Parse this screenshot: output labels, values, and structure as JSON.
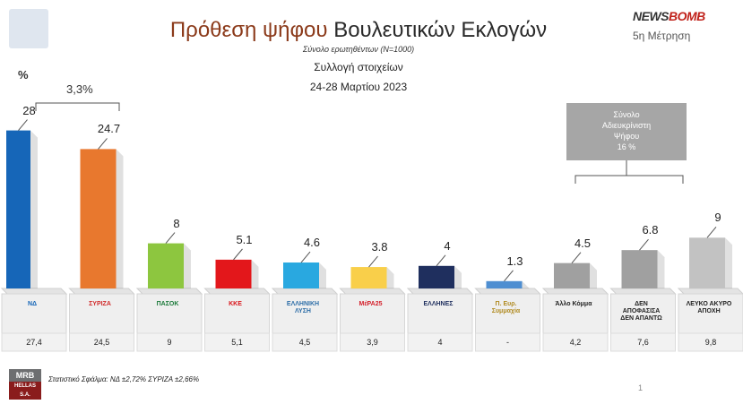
{
  "header": {
    "title_part1": "Πρόθεση ψήφου",
    "title_part2": "Βουλευτικών Εκλογών",
    "sample": "Σύνολο ερωτηθέντων (Ν=1000)",
    "collection": "Συλλογή στοιχείων",
    "dates": "24-28 Μαρτίου 2023",
    "brand_news": "NEWS",
    "brand_bomb": "BOMB",
    "wave": "5η Μέτρηση"
  },
  "annotations": {
    "unit": "%",
    "gap": "3,3%",
    "undecided_box": [
      "Σύνολο",
      "Αδιευκρίνιστη",
      "Ψήφου",
      "16 %"
    ]
  },
  "footer": {
    "error": "Στατιστικό Σφάλμα: ΝΔ ±2,72% ΣΥΡΙΖΑ ±2,66%",
    "page": "1",
    "mrb_logo": "MRB",
    "mrb_sub": "HELLAS S.A."
  },
  "chart_data": {
    "type": "bar",
    "categories": [
      "ΝΔ",
      "ΣΥΡΙΖΑ",
      "ΠΑΣΟΚ",
      "ΚΚΕ",
      "Ελληνική Λύση",
      "ΜέΡΑ25",
      "Ελληνες",
      "Π. Ευρ. Συμμαχία",
      "Άλλο Κόμμα",
      "Δεν απαντώ",
      "Λευκό Άκυρο Αποχή"
    ],
    "values": [
      28,
      24.7,
      8,
      5.1,
      4.6,
      3.8,
      4,
      1.3,
      4.5,
      6.8,
      9
    ],
    "value_labels": [
      "28",
      "24.7",
      "8",
      "5.1",
      "4.6",
      "3.8",
      "4",
      "1.3",
      "4.5",
      "6.8",
      "9"
    ],
    "previous_row": [
      "27,4",
      "24,5",
      "9",
      "5,1",
      "4,5",
      "3,9",
      "4",
      "-",
      "4,2",
      "7,6",
      "9,8"
    ],
    "logo_texts": [
      "ΝΔ",
      "ΣΥΡΙΖΑ",
      "ΠΑΣΟΚ",
      "ΚΚΕ",
      "ΕΛΛΗΝΙΚΗ ΛΥΣΗ",
      "ΜέΡΑ25",
      "ΕΛΛΗΝΕΣ",
      "Π. Ευρ. Συμμαχία",
      "Άλλο Κόμμα",
      "ΔΕΝ ΑΠΟΦΑΣΙΣΑ ΔΕΝ ΑΠΑΝΤΩ",
      "ΛΕΥΚΟ ΑΚΥΡΟ ΑΠΟΧΗ"
    ],
    "colors": [
      "#1666b8",
      "#e8782e",
      "#8dc63f",
      "#e3171b",
      "#29a8e0",
      "#f9cf4a",
      "#1f2f5e",
      "#4e8ed1",
      "#a0a0a0",
      "#a0a0a0",
      "#c2c2c2"
    ],
    "logo_colors": [
      "#1666b8",
      "#d12d2d",
      "#1b7a3a",
      "#d9151b",
      "#2f6fa8",
      "#d41f2a",
      "#1f2f5e",
      "#b08a20",
      "#222222",
      "#222222",
      "#222222"
    ],
    "ylim": [
      0,
      30
    ],
    "xlabel": "",
    "ylabel": "%"
  }
}
